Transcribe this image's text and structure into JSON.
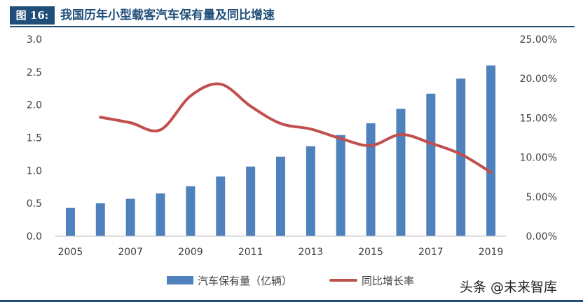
{
  "figure": {
    "badge": "图 16:",
    "title": "我国历年小型载客汽车保有量及同比增速"
  },
  "chart_data": {
    "type": "bar",
    "title": "",
    "x": [
      2005,
      2006,
      2007,
      2008,
      2009,
      2010,
      2011,
      2012,
      2013,
      2014,
      2015,
      2016,
      2017,
      2018,
      2019
    ],
    "x_tick_labels": [
      "2005",
      "2007",
      "2009",
      "2011",
      "2013",
      "2015",
      "2017",
      "2019"
    ],
    "series": [
      {
        "name": "汽车保有量（亿辆）",
        "type": "bar",
        "axis": "left",
        "color": "#4f81bd",
        "values": [
          0.43,
          0.5,
          0.57,
          0.65,
          0.76,
          0.91,
          1.06,
          1.21,
          1.37,
          1.54,
          1.72,
          1.94,
          2.17,
          2.4,
          2.6
        ]
      },
      {
        "name": "同比增长率",
        "type": "line",
        "axis": "right",
        "color": "#c0504d",
        "values": [
          null,
          15.1,
          14.4,
          13.5,
          17.8,
          19.3,
          16.5,
          14.3,
          13.6,
          12.4,
          11.5,
          12.9,
          11.8,
          10.4,
          8.1
        ]
      }
    ],
    "y_left": {
      "ylim": [
        0,
        3.0
      ],
      "ticks": [
        "0.0",
        "0.5",
        "1.0",
        "1.5",
        "2.0",
        "2.5",
        "3.0"
      ]
    },
    "y_right": {
      "ylim": [
        0,
        25
      ],
      "ticks": [
        "0.00%",
        "5.00%",
        "10.00%",
        "15.00%",
        "20.00%",
        "25.00%"
      ]
    },
    "grid": false,
    "legend_position": "bottom"
  },
  "watermark": "头条 @未来智库"
}
